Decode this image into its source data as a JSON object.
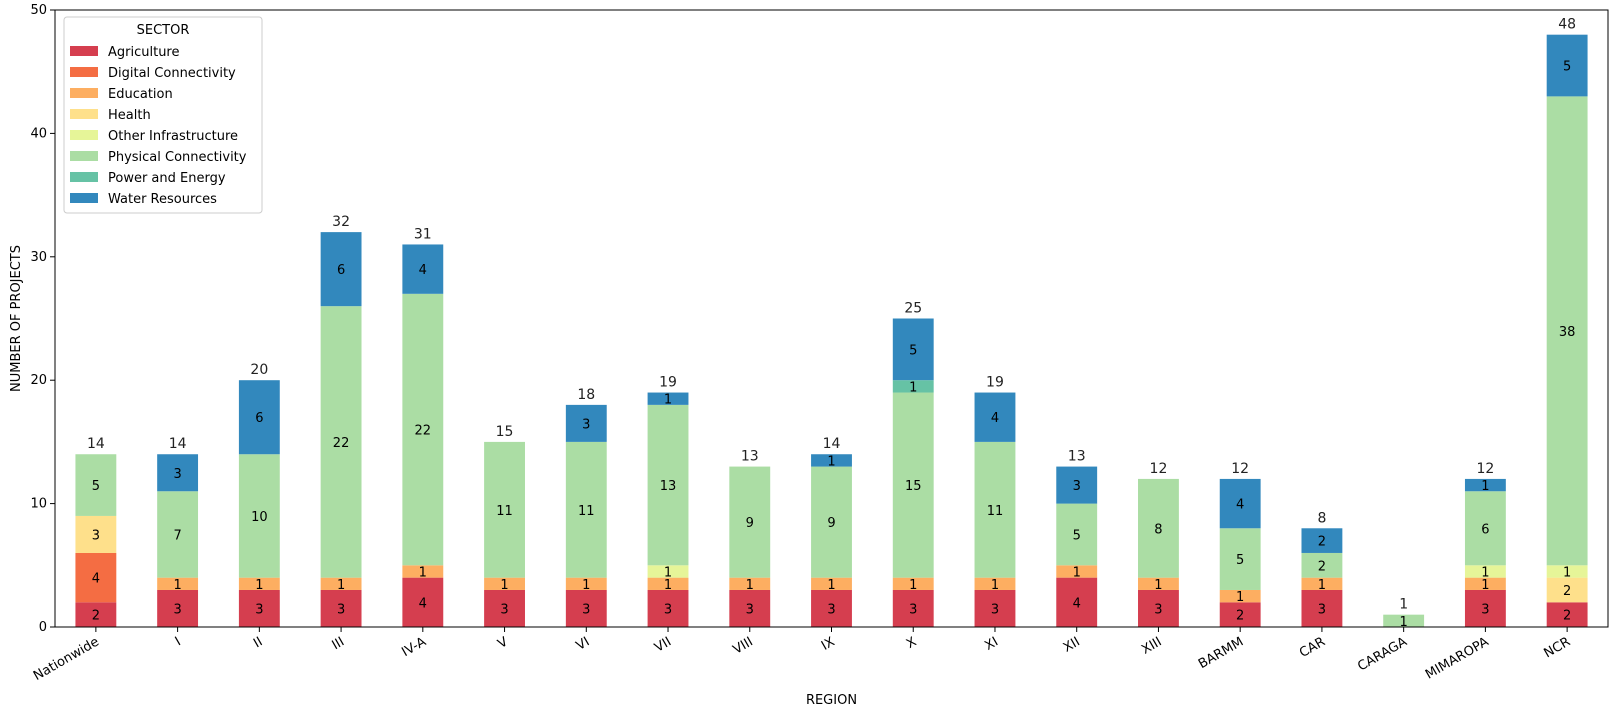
{
  "chart_data": {
    "type": "bar",
    "stacked": true,
    "xlabel": "REGION",
    "ylabel": "NUMBER OF PROJECTS",
    "ylim": [
      0,
      50
    ],
    "yticks": [
      0,
      10,
      20,
      30,
      40,
      50
    ],
    "legend_title": "SECTOR",
    "legend_position": "top-left",
    "categories": [
      "Nationwide",
      "I",
      "II",
      "III",
      "IV-A",
      "V",
      "VI",
      "VII",
      "VIII",
      "IX",
      "X",
      "XI",
      "XII",
      "XIII",
      "BARMM",
      "CAR",
      "CARAGA",
      "MIMAROPA",
      "NCR"
    ],
    "totals": [
      14,
      14,
      20,
      32,
      31,
      15,
      18,
      19,
      13,
      14,
      25,
      19,
      13,
      12,
      12,
      8,
      1,
      12,
      48
    ],
    "series": [
      {
        "name": "Agriculture",
        "color": "#d53e4f",
        "values": [
          2,
          3,
          3,
          3,
          4,
          3,
          3,
          3,
          3,
          3,
          3,
          3,
          4,
          3,
          2,
          3,
          0,
          3,
          2
        ]
      },
      {
        "name": "Digital Connectivity",
        "color": "#f46d43",
        "values": [
          4,
          0,
          0,
          0,
          0,
          0,
          0,
          0,
          0,
          0,
          0,
          0,
          0,
          0,
          0,
          0,
          0,
          0,
          0
        ]
      },
      {
        "name": "Education",
        "color": "#fdae61",
        "values": [
          0,
          1,
          1,
          1,
          1,
          1,
          1,
          1,
          1,
          1,
          1,
          1,
          1,
          1,
          1,
          1,
          0,
          1,
          0
        ]
      },
      {
        "name": "Health",
        "color": "#fee08b",
        "values": [
          3,
          0,
          0,
          0,
          0,
          0,
          0,
          0,
          0,
          0,
          0,
          0,
          0,
          0,
          0,
          0,
          0,
          0,
          2
        ]
      },
      {
        "name": "Other Infrastructure",
        "color": "#e6f598",
        "values": [
          0,
          0,
          0,
          0,
          0,
          0,
          0,
          1,
          0,
          0,
          0,
          0,
          0,
          0,
          0,
          0,
          0,
          1,
          1
        ]
      },
      {
        "name": "Physical Connectivity",
        "color": "#abdda4",
        "values": [
          5,
          7,
          10,
          22,
          22,
          11,
          11,
          13,
          9,
          9,
          15,
          11,
          5,
          8,
          5,
          2,
          1,
          6,
          38
        ]
      },
      {
        "name": "Power and Energy",
        "color": "#66c2a5",
        "values": [
          0,
          0,
          0,
          0,
          0,
          0,
          0,
          0,
          0,
          0,
          1,
          0,
          0,
          0,
          0,
          0,
          0,
          0,
          0
        ]
      },
      {
        "name": "Water Resources",
        "color": "#3288bd",
        "values": [
          0,
          3,
          6,
          6,
          4,
          0,
          3,
          1,
          0,
          1,
          5,
          4,
          3,
          0,
          4,
          2,
          0,
          1,
          5
        ]
      }
    ]
  }
}
